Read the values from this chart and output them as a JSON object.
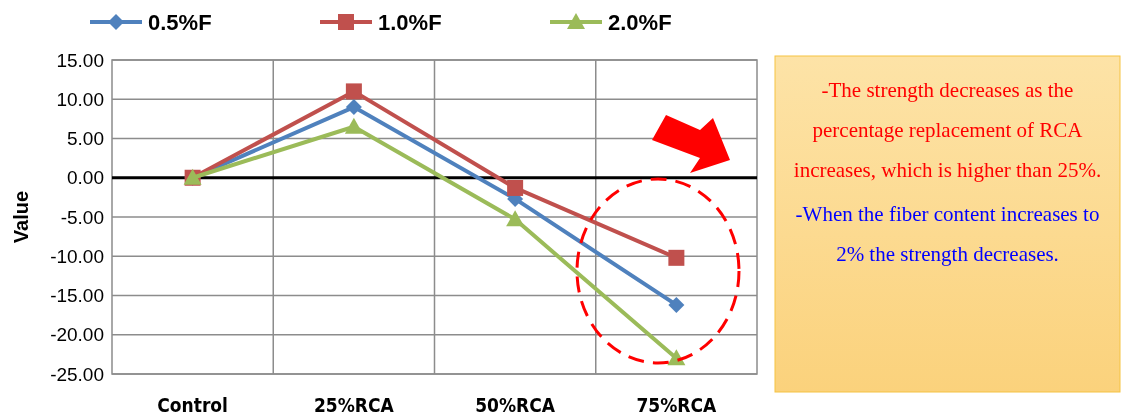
{
  "chart_data": {
    "type": "line",
    "ylabel": "Value",
    "categories": [
      "Control",
      "25%RCA",
      "50%RCA",
      "75%RCA"
    ],
    "series": [
      {
        "name": "0.5%F",
        "color": "#4f81bd",
        "marker": "diamond",
        "values": [
          0,
          9.0,
          -2.7,
          -16.2
        ]
      },
      {
        "name": "1.0%F",
        "color": "#c0504d",
        "marker": "square",
        "values": [
          0,
          11.0,
          -1.3,
          -10.2
        ]
      },
      {
        "name": "2.0%F",
        "color": "#9bbb59",
        "marker": "triangle",
        "values": [
          0,
          6.5,
          -5.3,
          -23.0
        ]
      }
    ],
    "ylim": [
      -25,
      15
    ],
    "yticks": [
      {
        "value": 15,
        "label": "15.00"
      },
      {
        "value": 10,
        "label": "10.00"
      },
      {
        "value": 5,
        "label": "5.00"
      },
      {
        "value": 0,
        "label": "0.00"
      },
      {
        "value": -5,
        "label": "-5.00"
      },
      {
        "value": -10,
        "label": "-10.00"
      },
      {
        "value": -15,
        "label": "-15.00"
      },
      {
        "value": -20,
        "label": "-20.00"
      },
      {
        "value": -25,
        "label": "-25.00"
      }
    ],
    "ref_lines": [
      {
        "axis": "y",
        "value": 0,
        "color": "#000000"
      }
    ],
    "grid": true,
    "legend": "top",
    "annotations": [
      "-The strength decreases as the percentage replacement of RCA increases, which is higher than 25%.",
      "-When the fiber content increases to 2% the strength decreases."
    ]
  }
}
